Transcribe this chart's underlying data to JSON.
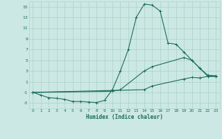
{
  "xlabel": "Humidex (Indice chaleur)",
  "background_color": "#cce8e4",
  "grid_color": "#b0d4cc",
  "line_color": "#1a6b5a",
  "xlim": [
    -0.5,
    23.5
  ],
  "ylim": [
    -4,
    16
  ],
  "xticks": [
    0,
    1,
    2,
    3,
    4,
    5,
    6,
    7,
    8,
    9,
    10,
    11,
    12,
    13,
    14,
    15,
    16,
    17,
    18,
    19,
    20,
    21,
    22,
    23
  ],
  "yticks": [
    -3,
    -1,
    1,
    3,
    5,
    7,
    9,
    11,
    13,
    15
  ],
  "line1_x": [
    0,
    1,
    2,
    3,
    4,
    5,
    6,
    7,
    8,
    9,
    10,
    11,
    12,
    13,
    14,
    15,
    16,
    17,
    18,
    19,
    20,
    21,
    22,
    23
  ],
  "line1_y": [
    -1,
    -1.5,
    -2,
    -2.1,
    -2.3,
    -2.7,
    -2.7,
    -2.8,
    -2.9,
    -2.5,
    -0.5,
    3.0,
    7.0,
    13.0,
    15.5,
    15.3,
    14.2,
    8.2,
    8.0,
    6.5,
    5.0,
    3.5,
    2.0,
    2.0
  ],
  "line2_x": [
    0,
    10,
    11,
    14,
    15,
    19,
    20,
    21,
    22,
    23
  ],
  "line2_y": [
    -1,
    -0.8,
    -0.5,
    3.0,
    3.8,
    5.5,
    5.0,
    3.5,
    2.2,
    2.1
  ],
  "line3_x": [
    0,
    14,
    15,
    19,
    20,
    21,
    22,
    23
  ],
  "line3_y": [
    -1,
    -0.5,
    0.2,
    1.5,
    1.8,
    1.7,
    2.0,
    2.0
  ]
}
